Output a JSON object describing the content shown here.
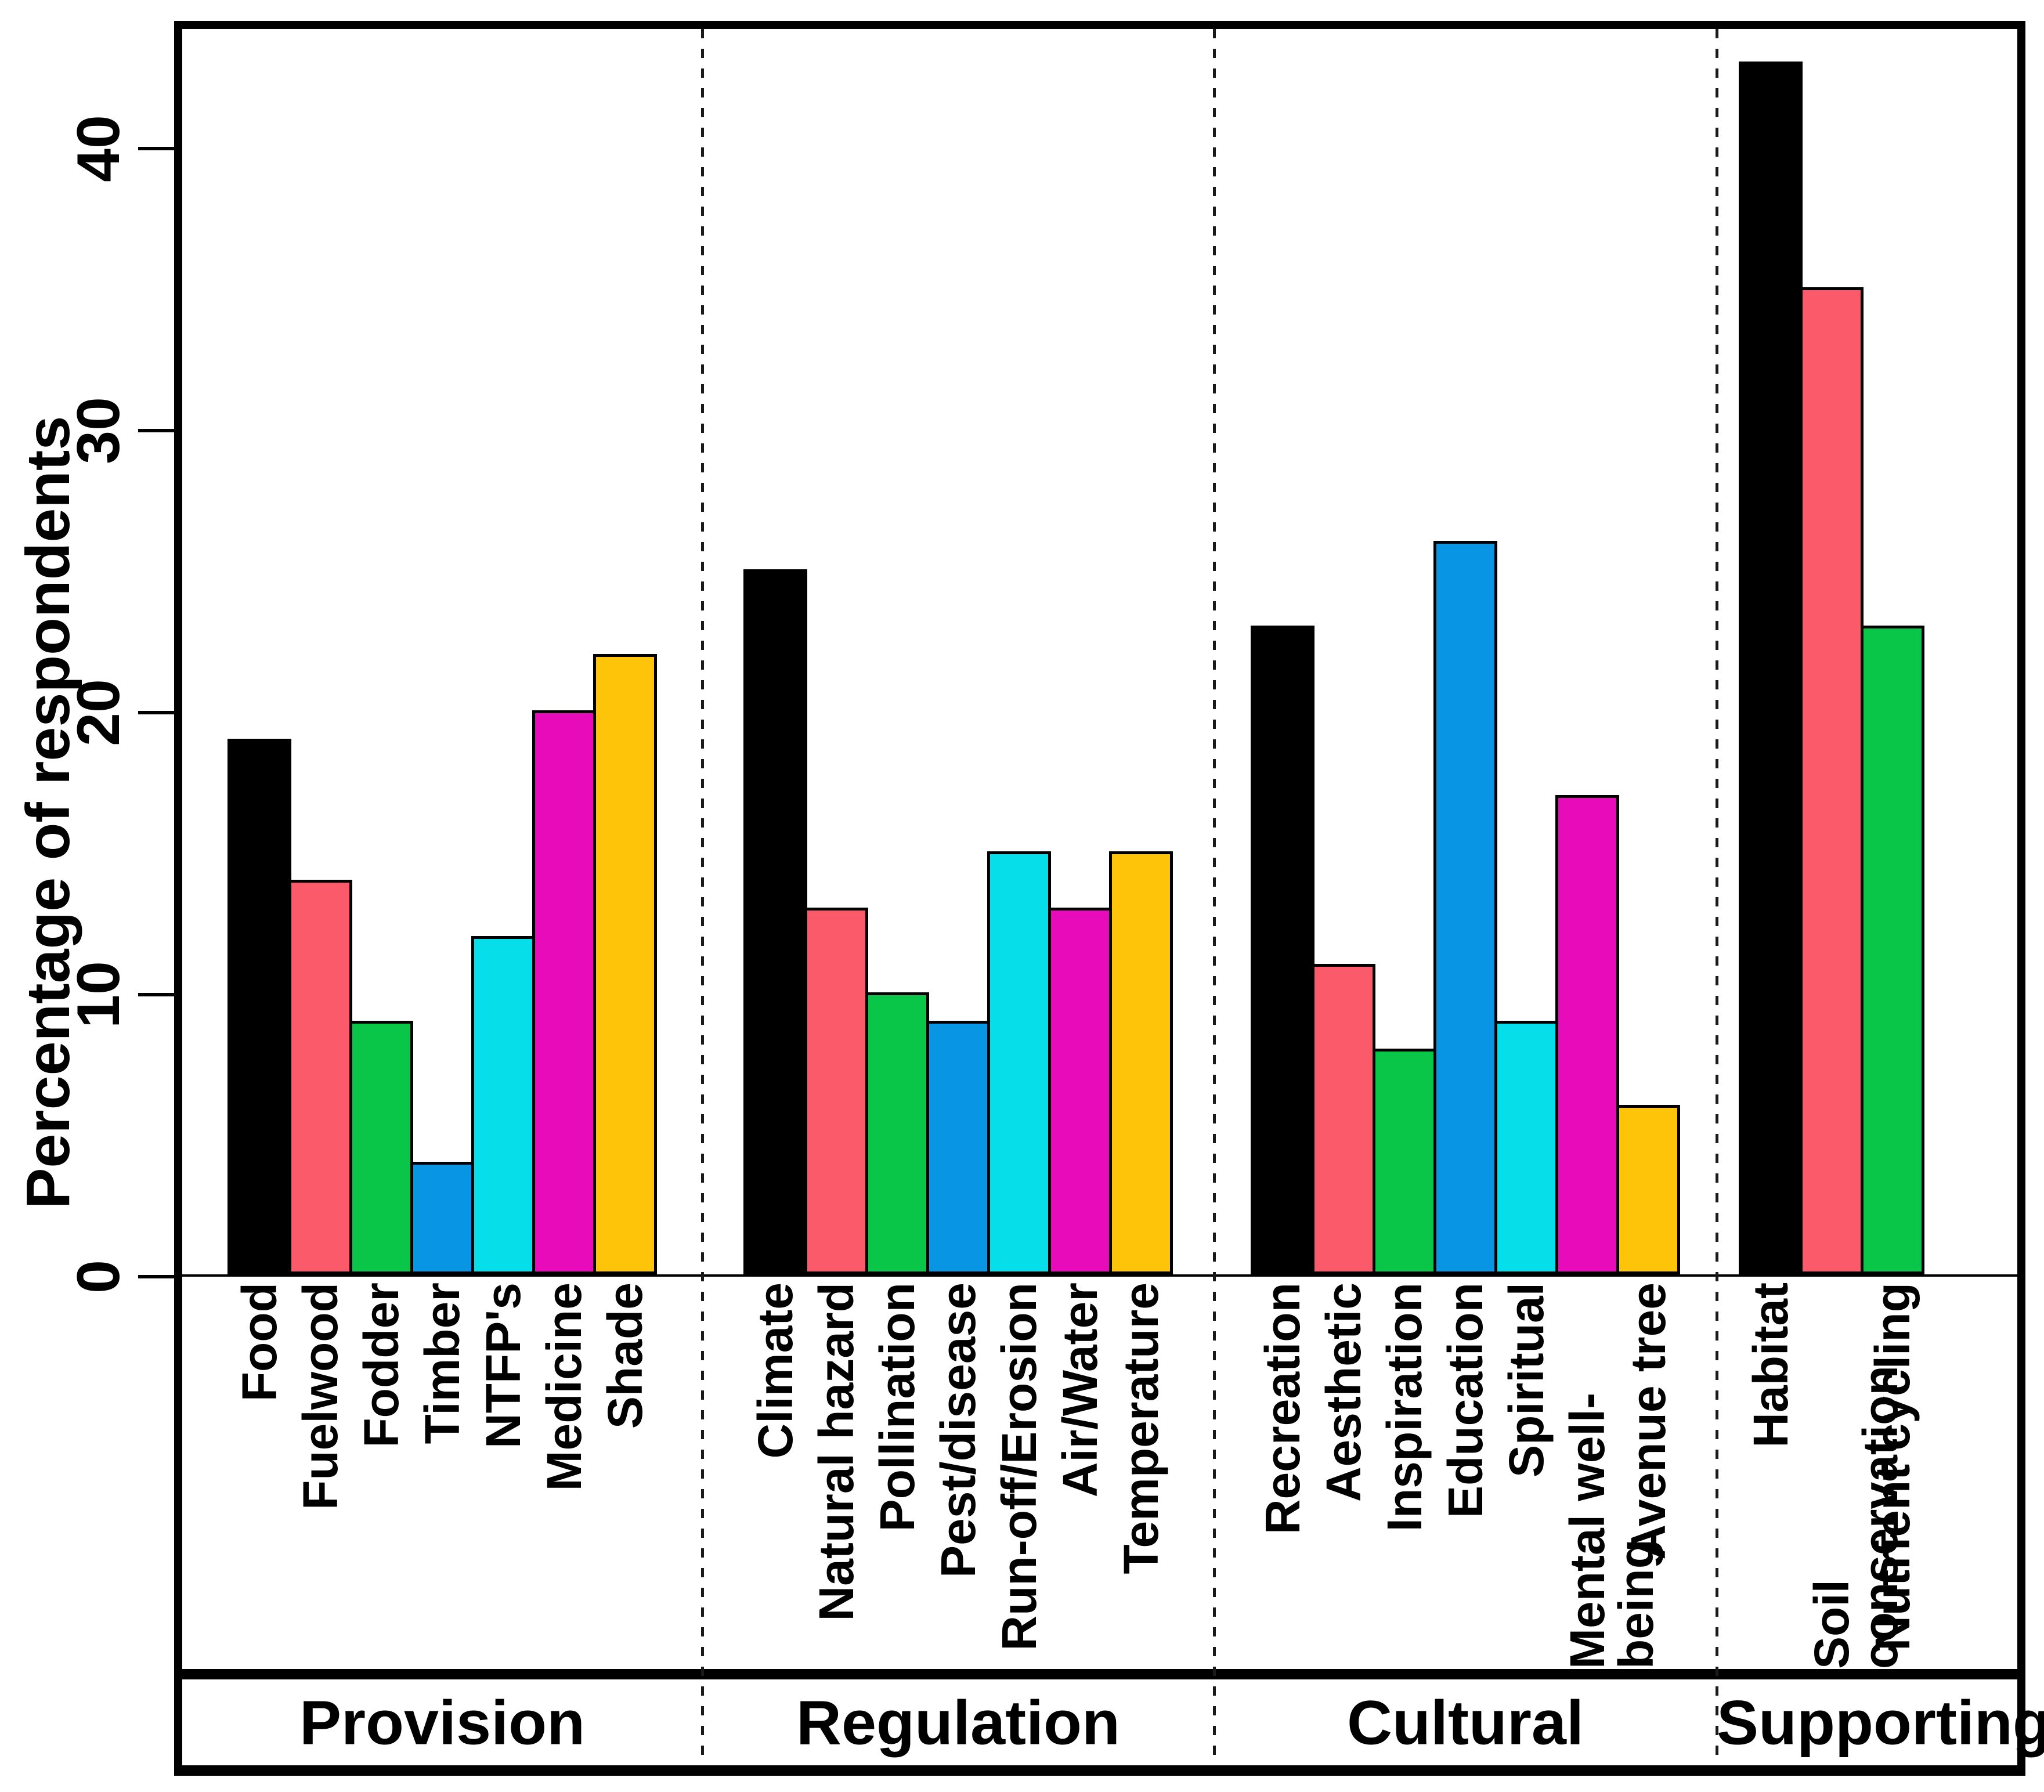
{
  "chart_data": {
    "type": "bar",
    "title": "",
    "xlabel": "",
    "ylabel": "Percentage of respondents",
    "ylim": [
      0,
      44.5
    ],
    "yticks": [
      0,
      10,
      20,
      30,
      40
    ],
    "grid": false,
    "legend": "none",
    "bar_colors": [
      "#000000",
      "#FB5A6B",
      "#09C649",
      "#0795E4",
      "#06DEE9",
      "#E80BBA",
      "#FEC40A"
    ],
    "groups": [
      {
        "name": "Provision",
        "categories": [
          "Food",
          "Fuelwood",
          "Fodder",
          "Timber",
          "NTFP's",
          "Medicine",
          "Shade"
        ],
        "values": [
          19,
          14,
          9,
          4,
          12,
          20,
          22
        ]
      },
      {
        "name": "Regulation",
        "categories": [
          "Climate",
          "Natural hazard",
          "Pollination",
          "Pest/disease",
          "Run-off/Erosion",
          "Air/Water",
          "Temperature"
        ],
        "values": [
          25,
          13,
          10,
          9,
          15,
          13,
          15
        ]
      },
      {
        "name": "Cultural",
        "categories": [
          "Recreation",
          "Aesthetic",
          "Inspiration",
          "Education",
          "Spiritual",
          "Mental well-being",
          "Avenue tree"
        ],
        "values": [
          23,
          11,
          8,
          26,
          9,
          17,
          6
        ]
      },
      {
        "name": "Supporting",
        "categories": [
          "Habitat",
          "Soil conservation",
          "Nutrient cycling"
        ],
        "values": [
          43,
          35,
          23
        ]
      }
    ]
  }
}
